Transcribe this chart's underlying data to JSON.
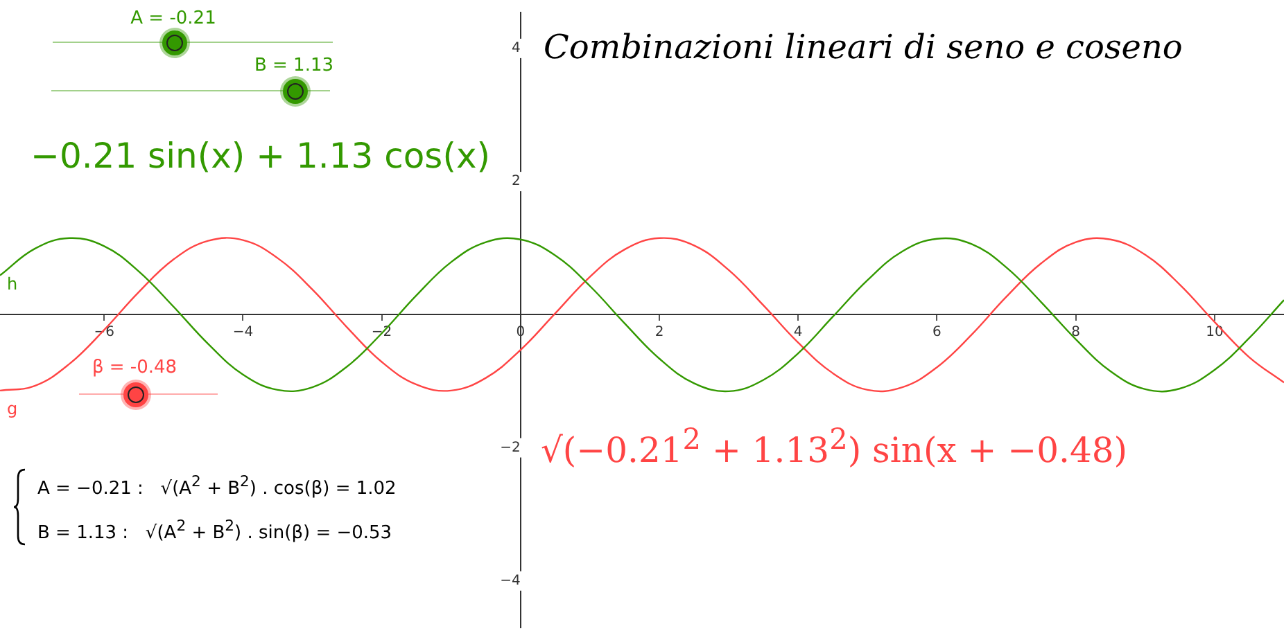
{
  "chart_data": {
    "type": "line",
    "title": "Combinazioni lineari di seno e coseno",
    "x": [
      -7.5,
      -7,
      -6.5,
      -6,
      -5.5,
      -5,
      -4.5,
      -4,
      -3.5,
      -3,
      -2.5,
      -2,
      -1.5,
      -1,
      -0.5,
      0,
      0.5,
      1,
      1.5,
      2,
      2.5,
      3,
      3.5,
      4,
      4.5,
      5,
      5.5,
      6,
      6.5,
      7,
      7.5,
      8,
      8.5,
      9,
      9.5,
      10,
      10.5,
      11
    ],
    "series": [
      {
        "name": "h",
        "color": "#339900",
        "values": [
          0.59,
          0.99,
          1.15,
          1.03,
          0.65,
          0.12,
          -0.44,
          -0.9,
          -1.13,
          -1.09,
          -0.78,
          -0.28,
          0.29,
          0.79,
          1.09,
          1.13,
          0.89,
          0.43,
          -0.13,
          -0.66,
          -1.03,
          -1.15,
          -0.98,
          -0.58,
          -0.03,
          0.52,
          0.95,
          1.14,
          1.06,
          0.71,
          0.19,
          -0.37,
          -0.85,
          -1.12,
          -1.11,
          -0.83,
          -0.35,
          0.22
        ]
      },
      {
        "name": "g",
        "color": "#ff4444",
        "values": [
          -1.14,
          -1.07,
          -0.74,
          -0.23,
          0.34,
          0.83,
          1.11,
          1.12,
          0.85,
          0.38,
          -0.19,
          -0.71,
          -1.05,
          -1.14,
          -0.95,
          -0.53,
          0.02,
          0.57,
          0.98,
          1.15,
          1.04,
          0.67,
          0.14,
          -0.42,
          -0.88,
          -1.13,
          -1.09,
          -0.79,
          -0.3,
          0.27,
          0.77,
          1.09,
          1.13,
          0.9,
          0.45,
          -0.11,
          -0.64,
          -1.02
        ]
      }
    ],
    "xlim": [
      -7.5,
      11
    ],
    "ylim": [
      -4.7,
      4.54
    ],
    "xticks": [
      -6,
      -4,
      -2,
      0,
      2,
      4,
      6,
      8,
      10
    ],
    "yticks": [
      -4,
      -2,
      2,
      4
    ],
    "grid": false,
    "legend": false,
    "marker": "none",
    "line_style": "solid",
    "annotations": [
      "A = -0.21",
      "B = 1.13",
      "β = -0.48",
      "−0.21 sin(x) + 1.13 cos(x)",
      "√(−0.21$^{2}$ + 1.13$^{2}$) sin(x + −0.48)",
      "A = −0.21 :   √(A$^{2}$ + B$^{2}$) . cos(β) = 1.02",
      "B = 1.13 :   √(A$^{2}$ + B$^{2}$) . sin(β) = −0.53"
    ]
  }
}
